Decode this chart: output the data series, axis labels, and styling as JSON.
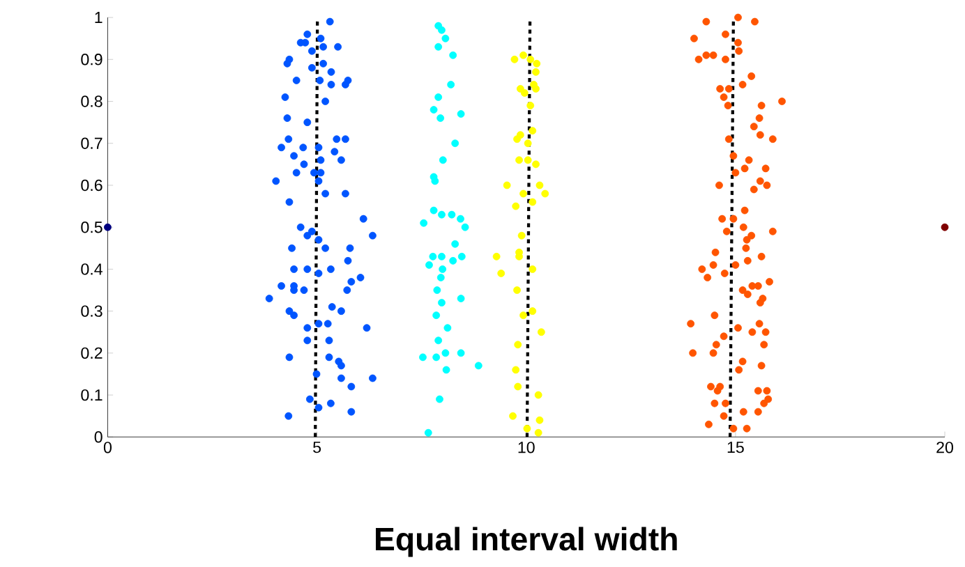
{
  "chart_data": {
    "type": "scatter",
    "xlabel": "Equal interval width",
    "xlim": [
      0,
      20
    ],
    "ylim": [
      0,
      1
    ],
    "xticks": [
      0,
      5,
      10,
      15,
      20
    ],
    "yticks": [
      0,
      0.1,
      0.2,
      0.3,
      0.4,
      0.5,
      0.6,
      0.7,
      0.8,
      0.9,
      1
    ],
    "marker": "circle",
    "series": [
      {
        "color": "#00007f",
        "x": [
          0
        ],
        "values": [
          0.5
        ]
      },
      {
        "color": "#7f0000",
        "x": [
          20
        ],
        "values": [
          0.5
        ]
      },
      {
        "color": "#0055ff",
        "x": [
          5.31,
          4.77,
          4.61,
          4.72,
          5.09,
          5.5,
          4.34,
          4.29,
          4.88,
          5.15,
          4.88,
          5.15,
          5.34,
          4.51,
          5.07,
          5.74,
          5.68,
          5.34,
          4.24,
          5.2,
          4.29,
          4.77,
          4.32,
          5.47,
          5.68,
          4.15,
          4.67,
          5.04,
          5.42,
          4.45,
          5.58,
          5.09,
          4.69,
          4.51,
          4.93,
          5.09,
          4.02,
          5.04,
          5.2,
          5.68,
          4.34,
          6.11,
          4.61,
          4.88,
          6.33,
          4.77,
          5.04,
          4.4,
          5.2,
          5.79,
          5.74,
          4.45,
          4.77,
          5.33,
          5.04,
          6.04,
          5.82,
          4.15,
          4.45,
          4.45,
          4.69,
          5.72,
          3.86,
          4.34,
          5.36,
          5.58,
          4.45,
          4.77,
          5.26,
          5.04,
          6.19,
          4.77,
          5.29,
          4.34,
          5.29,
          5.52,
          5.58,
          4.99,
          5.58,
          6.33,
          5.82,
          4.83,
          5.33,
          5.04,
          5.82,
          4.32
        ],
        "values": [
          0.99,
          0.96,
          0.94,
          0.94,
          0.95,
          0.93,
          0.9,
          0.89,
          0.92,
          0.93,
          0.88,
          0.89,
          0.87,
          0.85,
          0.85,
          0.85,
          0.84,
          0.84,
          0.81,
          0.8,
          0.76,
          0.75,
          0.71,
          0.71,
          0.71,
          0.69,
          0.69,
          0.69,
          0.68,
          0.67,
          0.66,
          0.66,
          0.65,
          0.63,
          0.63,
          0.63,
          0.61,
          0.61,
          0.58,
          0.58,
          0.56,
          0.52,
          0.5,
          0.49,
          0.48,
          0.48,
          0.47,
          0.45,
          0.45,
          0.45,
          0.42,
          0.4,
          0.4,
          0.4,
          0.39,
          0.38,
          0.37,
          0.36,
          0.36,
          0.35,
          0.35,
          0.35,
          0.33,
          0.3,
          0.31,
          0.3,
          0.29,
          0.26,
          0.27,
          0.27,
          0.26,
          0.23,
          0.23,
          0.19,
          0.19,
          0.18,
          0.17,
          0.15,
          0.14,
          0.14,
          0.12,
          0.09,
          0.08,
          0.07,
          0.06,
          0.05
        ]
      },
      {
        "color": "#00ffff",
        "x": [
          7.9,
          7.98,
          8.07,
          7.9,
          8.25,
          8.2,
          7.9,
          7.79,
          7.95,
          8.44,
          8.3,
          8.01,
          7.79,
          7.82,
          7.79,
          7.98,
          8.22,
          8.43,
          7.55,
          8.54,
          8.3,
          7.77,
          7.98,
          8.46,
          8.25,
          7.68,
          8.0,
          7.96,
          7.87,
          8.44,
          7.98,
          7.85,
          8.12,
          7.9,
          8.44,
          7.53,
          7.85,
          8.07,
          8.86,
          8.09,
          7.93,
          7.66
        ],
        "values": [
          0.98,
          0.97,
          0.95,
          0.93,
          0.91,
          0.84,
          0.81,
          0.78,
          0.76,
          0.77,
          0.7,
          0.66,
          0.62,
          0.61,
          0.54,
          0.53,
          0.53,
          0.52,
          0.51,
          0.5,
          0.46,
          0.43,
          0.43,
          0.43,
          0.42,
          0.41,
          0.4,
          0.38,
          0.35,
          0.33,
          0.32,
          0.29,
          0.26,
          0.23,
          0.2,
          0.19,
          0.19,
          0.2,
          0.17,
          0.16,
          0.09,
          0.01
        ]
      },
      {
        "color": "#ffff00",
        "x": [
          9.72,
          9.93,
          10.1,
          10.25,
          10.23,
          10.18,
          9.86,
          9.96,
          10.23,
          10.1,
          9.86,
          10.15,
          9.78,
          10.04,
          9.83,
          10.04,
          10.23,
          9.54,
          10.32,
          9.93,
          10.45,
          10.15,
          9.75,
          9.89,
          9.83,
          9.29,
          9.83,
          10.15,
          9.4,
          9.78,
          9.93,
          10.15,
          10.36,
          9.8,
          9.75,
          9.8,
          10.29,
          9.68,
          10.32,
          10.02,
          10.29
        ],
        "values": [
          0.9,
          0.91,
          0.9,
          0.89,
          0.87,
          0.84,
          0.83,
          0.82,
          0.83,
          0.79,
          0.72,
          0.73,
          0.71,
          0.7,
          0.66,
          0.66,
          0.65,
          0.6,
          0.6,
          0.58,
          0.58,
          0.56,
          0.55,
          0.48,
          0.44,
          0.43,
          0.43,
          0.4,
          0.39,
          0.35,
          0.29,
          0.3,
          0.25,
          0.22,
          0.16,
          0.12,
          0.1,
          0.05,
          0.04,
          0.02,
          0.01
        ]
      },
      {
        "color": "#ff5500",
        "x": [
          14.3,
          15.06,
          15.46,
          14.01,
          14.76,
          15.06,
          15.08,
          14.3,
          14.12,
          14.47,
          14.76,
          15.38,
          14.63,
          14.84,
          15.17,
          14.72,
          14.82,
          16.11,
          15.62,
          15.57,
          15.44,
          15.59,
          15.89,
          14.84,
          14.95,
          15.32,
          15.22,
          15.72,
          15.0,
          15.59,
          15.75,
          15.44,
          14.61,
          15.22,
          14.68,
          14.95,
          14.79,
          15.19,
          15.89,
          15.38,
          15.27,
          15.25,
          14.52,
          15.62,
          14.47,
          15.0,
          15.29,
          14.2,
          14.33,
          14.74,
          15.81,
          15.54,
          15.4,
          15.17,
          15.29,
          15.65,
          15.59,
          14.5,
          13.93,
          15.06,
          15.4,
          15.57,
          15.72,
          14.72,
          14.54,
          15.68,
          13.98,
          14.47,
          15.17,
          15.62,
          15.08,
          14.41,
          14.63,
          15.54,
          15.75,
          14.57,
          15.78,
          15.68,
          14.5,
          14.76,
          15.54,
          15.19,
          14.72,
          14.36,
          14.95,
          15.27
        ],
        "values": [
          0.99,
          1.0,
          0.99,
          0.95,
          0.96,
          0.94,
          0.92,
          0.91,
          0.9,
          0.91,
          0.9,
          0.86,
          0.83,
          0.83,
          0.84,
          0.81,
          0.79,
          0.8,
          0.79,
          0.76,
          0.74,
          0.72,
          0.71,
          0.71,
          0.67,
          0.66,
          0.64,
          0.64,
          0.63,
          0.61,
          0.6,
          0.59,
          0.6,
          0.54,
          0.52,
          0.52,
          0.49,
          0.5,
          0.49,
          0.48,
          0.47,
          0.45,
          0.44,
          0.43,
          0.41,
          0.41,
          0.42,
          0.4,
          0.38,
          0.39,
          0.37,
          0.36,
          0.36,
          0.35,
          0.34,
          0.33,
          0.32,
          0.29,
          0.27,
          0.26,
          0.25,
          0.27,
          0.25,
          0.24,
          0.22,
          0.22,
          0.2,
          0.2,
          0.18,
          0.17,
          0.16,
          0.12,
          0.12,
          0.11,
          0.11,
          0.11,
          0.09,
          0.08,
          0.08,
          0.08,
          0.06,
          0.06,
          0.05,
          0.03,
          0.02,
          0.02
        ]
      },
      {
        "type": "line",
        "color": "#000000",
        "line_style": "dashed",
        "marker": "none",
        "x": [
          4.96,
          5.01
        ],
        "values": [
          0,
          1
        ]
      },
      {
        "type": "line",
        "color": "#000000",
        "line_style": "dashed",
        "marker": "none",
        "x": [
          10.02,
          10.09
        ],
        "values": [
          0,
          1
        ]
      },
      {
        "type": "line",
        "color": "#000000",
        "line_style": "dashed",
        "marker": "none",
        "x": [
          14.87,
          14.95
        ],
        "values": [
          0,
          1
        ]
      }
    ]
  }
}
